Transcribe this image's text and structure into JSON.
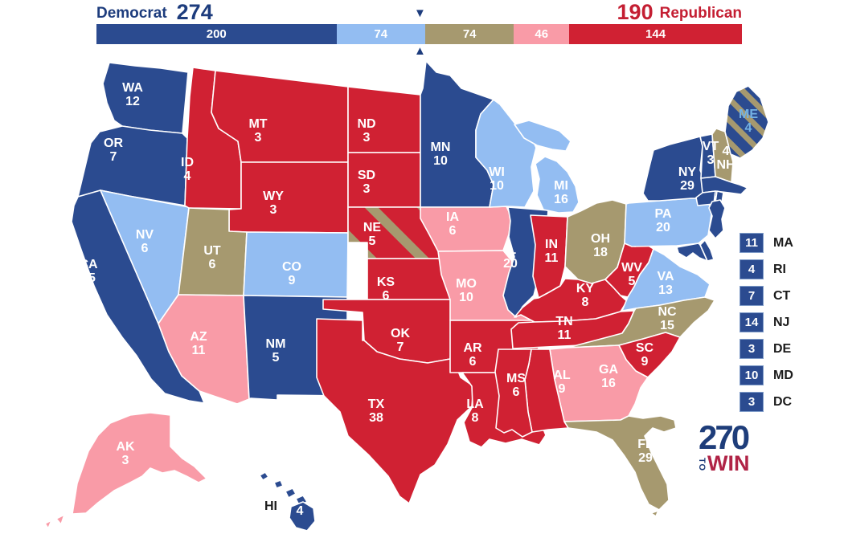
{
  "header": {
    "democrat_label": "Democrat",
    "democrat_total": "274",
    "republican_total": "190",
    "republican_label": "Republican",
    "bar_segments": [
      {
        "label": "200",
        "votes": 200,
        "status": "safe_dem"
      },
      {
        "label": "74",
        "votes": 74,
        "status": "lean_dem"
      },
      {
        "label": "74",
        "votes": 74,
        "status": "tossup"
      },
      {
        "label": "46",
        "votes": 46,
        "status": "lean_rep"
      },
      {
        "label": "144",
        "votes": 144,
        "status": "safe_rep"
      }
    ]
  },
  "icons": {
    "marker_down": "▼",
    "marker_up": "▲"
  },
  "colors": {
    "safe_dem": "#2b4b90",
    "lean_dem": "#93bdf2",
    "tossup": "#a6996f",
    "lean_rep": "#f99ba7",
    "safe_rep": "#d02133",
    "dem_text": "#1d3c7d",
    "rep_text": "#c41e32",
    "label_light": "#ffffff",
    "label_dark": "#1b1b1b",
    "me_label": "#74b2e4",
    "list_square_border": "#7f9cc9",
    "logo_blue": "#1e3d7a",
    "logo_red": "#b02346"
  },
  "map": {
    "states": {
      "WA": {
        "abbr": "WA",
        "votes": 12,
        "status": "safe_dem"
      },
      "OR": {
        "abbr": "OR",
        "votes": 7,
        "status": "safe_dem"
      },
      "CA": {
        "abbr": "CA",
        "votes": 55,
        "status": "safe_dem"
      },
      "NV": {
        "abbr": "NV",
        "votes": 6,
        "status": "lean_dem"
      },
      "ID": {
        "abbr": "ID",
        "votes": 4,
        "status": "safe_rep"
      },
      "MT": {
        "abbr": "MT",
        "votes": 3,
        "status": "safe_rep"
      },
      "WY": {
        "abbr": "WY",
        "votes": 3,
        "status": "safe_rep"
      },
      "UT": {
        "abbr": "UT",
        "votes": 6,
        "status": "tossup"
      },
      "CO": {
        "abbr": "CO",
        "votes": 9,
        "status": "lean_dem"
      },
      "AZ": {
        "abbr": "AZ",
        "votes": 11,
        "status": "lean_rep"
      },
      "NM": {
        "abbr": "NM",
        "votes": 5,
        "status": "safe_dem"
      },
      "ND": {
        "abbr": "ND",
        "votes": 3,
        "status": "safe_rep"
      },
      "SD": {
        "abbr": "SD",
        "votes": 3,
        "status": "safe_rep"
      },
      "NE": {
        "abbr": "NE",
        "votes": 5,
        "status": "safe_rep",
        "stripe": "tossup"
      },
      "KS": {
        "abbr": "KS",
        "votes": 6,
        "status": "safe_rep"
      },
      "OK": {
        "abbr": "OK",
        "votes": 7,
        "status": "safe_rep"
      },
      "TX": {
        "abbr": "TX",
        "votes": 38,
        "status": "safe_rep"
      },
      "MN": {
        "abbr": "MN",
        "votes": 10,
        "status": "safe_dem"
      },
      "IA": {
        "abbr": "IA",
        "votes": 6,
        "status": "lean_rep"
      },
      "MO": {
        "abbr": "MO",
        "votes": 10,
        "status": "lean_rep"
      },
      "AR": {
        "abbr": "AR",
        "votes": 6,
        "status": "safe_rep"
      },
      "LA": {
        "abbr": "LA",
        "votes": 8,
        "status": "safe_rep"
      },
      "WI": {
        "abbr": "WI",
        "votes": 10,
        "status": "lean_dem"
      },
      "IL": {
        "abbr": "IL",
        "votes": 20,
        "status": "safe_dem"
      },
      "MI": {
        "abbr": "MI",
        "votes": 16,
        "status": "lean_dem"
      },
      "IN": {
        "abbr": "IN",
        "votes": 11,
        "status": "safe_rep"
      },
      "OH": {
        "abbr": "OH",
        "votes": 18,
        "status": "tossup"
      },
      "KY": {
        "abbr": "KY",
        "votes": 8,
        "status": "safe_rep"
      },
      "TN": {
        "abbr": "TN",
        "votes": 11,
        "status": "safe_rep"
      },
      "WV": {
        "abbr": "WV",
        "votes": 5,
        "status": "safe_rep"
      },
      "VA": {
        "abbr": "VA",
        "votes": 13,
        "status": "lean_dem"
      },
      "NC": {
        "abbr": "NC",
        "votes": 15,
        "status": "tossup"
      },
      "SC": {
        "abbr": "SC",
        "votes": 9,
        "status": "safe_rep"
      },
      "GA": {
        "abbr": "GA",
        "votes": 16,
        "status": "lean_rep"
      },
      "AL": {
        "abbr": "AL",
        "votes": 9,
        "status": "safe_rep"
      },
      "MS": {
        "abbr": "MS",
        "votes": 6,
        "status": "safe_rep"
      },
      "FL": {
        "abbr": "FL",
        "votes": 29,
        "status": "tossup"
      },
      "PA": {
        "abbr": "PA",
        "votes": 20,
        "status": "lean_dem"
      },
      "NY": {
        "abbr": "NY",
        "votes": 29,
        "status": "safe_dem"
      },
      "VT": {
        "abbr": "VT",
        "votes": 3,
        "status": "safe_dem"
      },
      "NH": {
        "abbr": "NH",
        "votes": 4,
        "status": "tossup"
      },
      "ME": {
        "abbr": "ME",
        "votes": 4,
        "status": "safe_dem",
        "stripe": "tossup"
      },
      "MA": {
        "abbr": "MA",
        "votes": 11,
        "status": "safe_dem"
      },
      "CT": {
        "abbr": "CT",
        "votes": 7,
        "status": "safe_dem"
      },
      "RI": {
        "abbr": "RI",
        "votes": 4,
        "status": "safe_dem"
      },
      "NJ": {
        "abbr": "NJ",
        "votes": 14,
        "status": "safe_dem"
      },
      "DE": {
        "abbr": "DE",
        "votes": 3,
        "status": "safe_dem"
      },
      "MD": {
        "abbr": "MD",
        "votes": 10,
        "status": "safe_dem"
      },
      "AK": {
        "abbr": "AK",
        "votes": 3,
        "status": "lean_rep"
      },
      "HI": {
        "abbr": "HI",
        "votes": 4,
        "status": "safe_dem"
      }
    }
  },
  "side_list": {
    "items": [
      {
        "votes": "11",
        "label": "MA"
      },
      {
        "votes": "4",
        "label": "RI"
      },
      {
        "votes": "7",
        "label": "CT"
      },
      {
        "votes": "14",
        "label": "NJ"
      },
      {
        "votes": "3",
        "label": "DE"
      },
      {
        "votes": "10",
        "label": "MD"
      },
      {
        "votes": "3",
        "label": "DC"
      }
    ]
  },
  "logo": {
    "number": "270",
    "to": "TO",
    "win": "WIN"
  }
}
